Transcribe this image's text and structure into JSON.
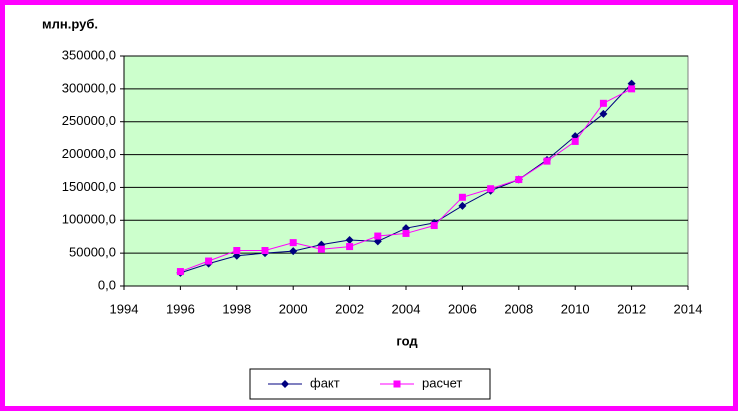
{
  "chart_data": {
    "type": "line",
    "y_label": "млн.руб.",
    "x_label": "год",
    "x": [
      1996,
      1997,
      1998,
      1999,
      2000,
      2001,
      2002,
      2003,
      2004,
      2005,
      2006,
      2007,
      2008,
      2009,
      2010,
      2011,
      2012
    ],
    "series": [
      {
        "name": "факт",
        "color": "#000080",
        "marker": "diamond",
        "values": [
          20000,
          34000,
          46000,
          50000,
          53000,
          63000,
          70000,
          68000,
          88000,
          96000,
          122000,
          145000,
          162000,
          192000,
          228000,
          262000,
          308000
        ]
      },
      {
        "name": "расчет",
        "color": "#ff00ff",
        "marker": "square",
        "values": [
          22000,
          38000,
          54000,
          54000,
          66000,
          56000,
          60000,
          76000,
          80000,
          92000,
          135000,
          148000,
          162000,
          190000,
          220000,
          278000,
          300000
        ]
      }
    ],
    "xlim": [
      1994,
      2014
    ],
    "xticks": [
      1994,
      1996,
      1998,
      2000,
      2002,
      2004,
      2006,
      2008,
      2010,
      2012,
      2014
    ],
    "ylim": [
      0,
      350000
    ],
    "yticks": [
      {
        "value": 0,
        "label": "0,0"
      },
      {
        "value": 50000,
        "label": "50000,0"
      },
      {
        "value": 100000,
        "label": "100000,0"
      },
      {
        "value": 150000,
        "label": "150000,0"
      },
      {
        "value": 200000,
        "label": "200000,0"
      },
      {
        "value": 250000,
        "label": "250000,0"
      },
      {
        "value": 300000,
        "label": "300000,0"
      },
      {
        "value": 350000,
        "label": "350000,0"
      }
    ],
    "grid": true,
    "legend": "bottom"
  }
}
